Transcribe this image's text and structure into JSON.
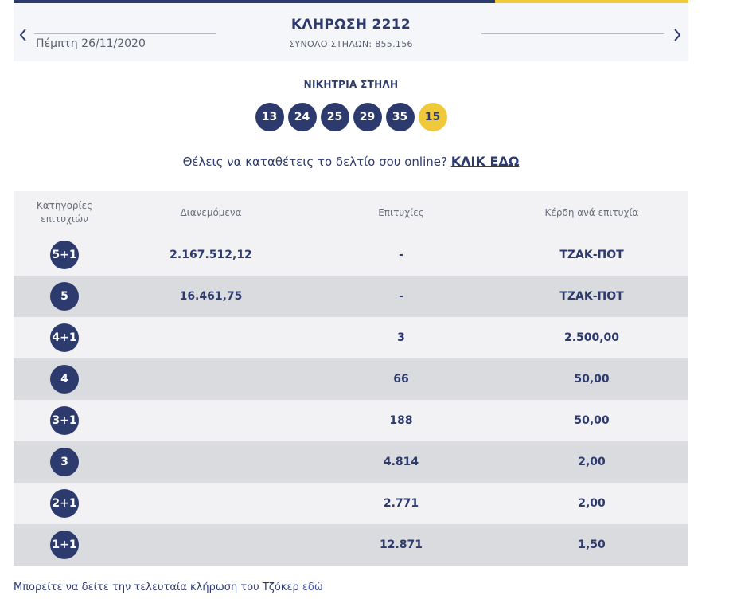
{
  "draw": {
    "title": "ΚΛΗΡΩΣΗ 2212",
    "total_columns": "ΣΥΝΟΛΟ ΣΤΗΛΩΝ: 855.156",
    "date": "Πέμπτη 26/11/2020"
  },
  "winning": {
    "label": "ΝΙΚΗΤΡΙΑ ΣΤΗΛΗ",
    "numbers": [
      "13",
      "24",
      "25",
      "29",
      "35"
    ],
    "joker": "15"
  },
  "cta": {
    "text": "Θέλεις να καταθέτεις το δελτίο σου online?",
    "link": "ΚΛΙΚ ΕΔΩ"
  },
  "table": {
    "headers": {
      "categories": "Κατηγορίες επιτυχιών",
      "distributed": "Διανεμόμενα",
      "winners": "Επιτυχίες",
      "prize": "Κέρδη ανά επιτυχία"
    },
    "rows": [
      {
        "category": "5+1",
        "distributed": "2.167.512,12",
        "winners": "-",
        "prize": "ΤΖΑΚ-ΠΟΤ"
      },
      {
        "category": "5",
        "distributed": "16.461,75",
        "winners": "-",
        "prize": "ΤΖΑΚ-ΠΟΤ"
      },
      {
        "category": "4+1",
        "distributed": "",
        "winners": "3",
        "prize": "2.500,00"
      },
      {
        "category": "4",
        "distributed": "",
        "winners": "66",
        "prize": "50,00"
      },
      {
        "category": "3+1",
        "distributed": "",
        "winners": "188",
        "prize": "50,00"
      },
      {
        "category": "3",
        "distributed": "",
        "winners": "4.814",
        "prize": "2,00"
      },
      {
        "category": "2+1",
        "distributed": "",
        "winners": "2.771",
        "prize": "2,00"
      },
      {
        "category": "1+1",
        "distributed": "",
        "winners": "12.871",
        "prize": "1,50"
      }
    ]
  },
  "footer": {
    "text": "Μπορείτε να δείτε την τελευταία κλήρωση του Τζόκερ",
    "link": "εδώ"
  },
  "colors": {
    "primary": "#2d3a6e",
    "accent": "#f0c93a"
  },
  "icons": {
    "prev": "chevron-left-icon",
    "next": "chevron-right-icon"
  }
}
